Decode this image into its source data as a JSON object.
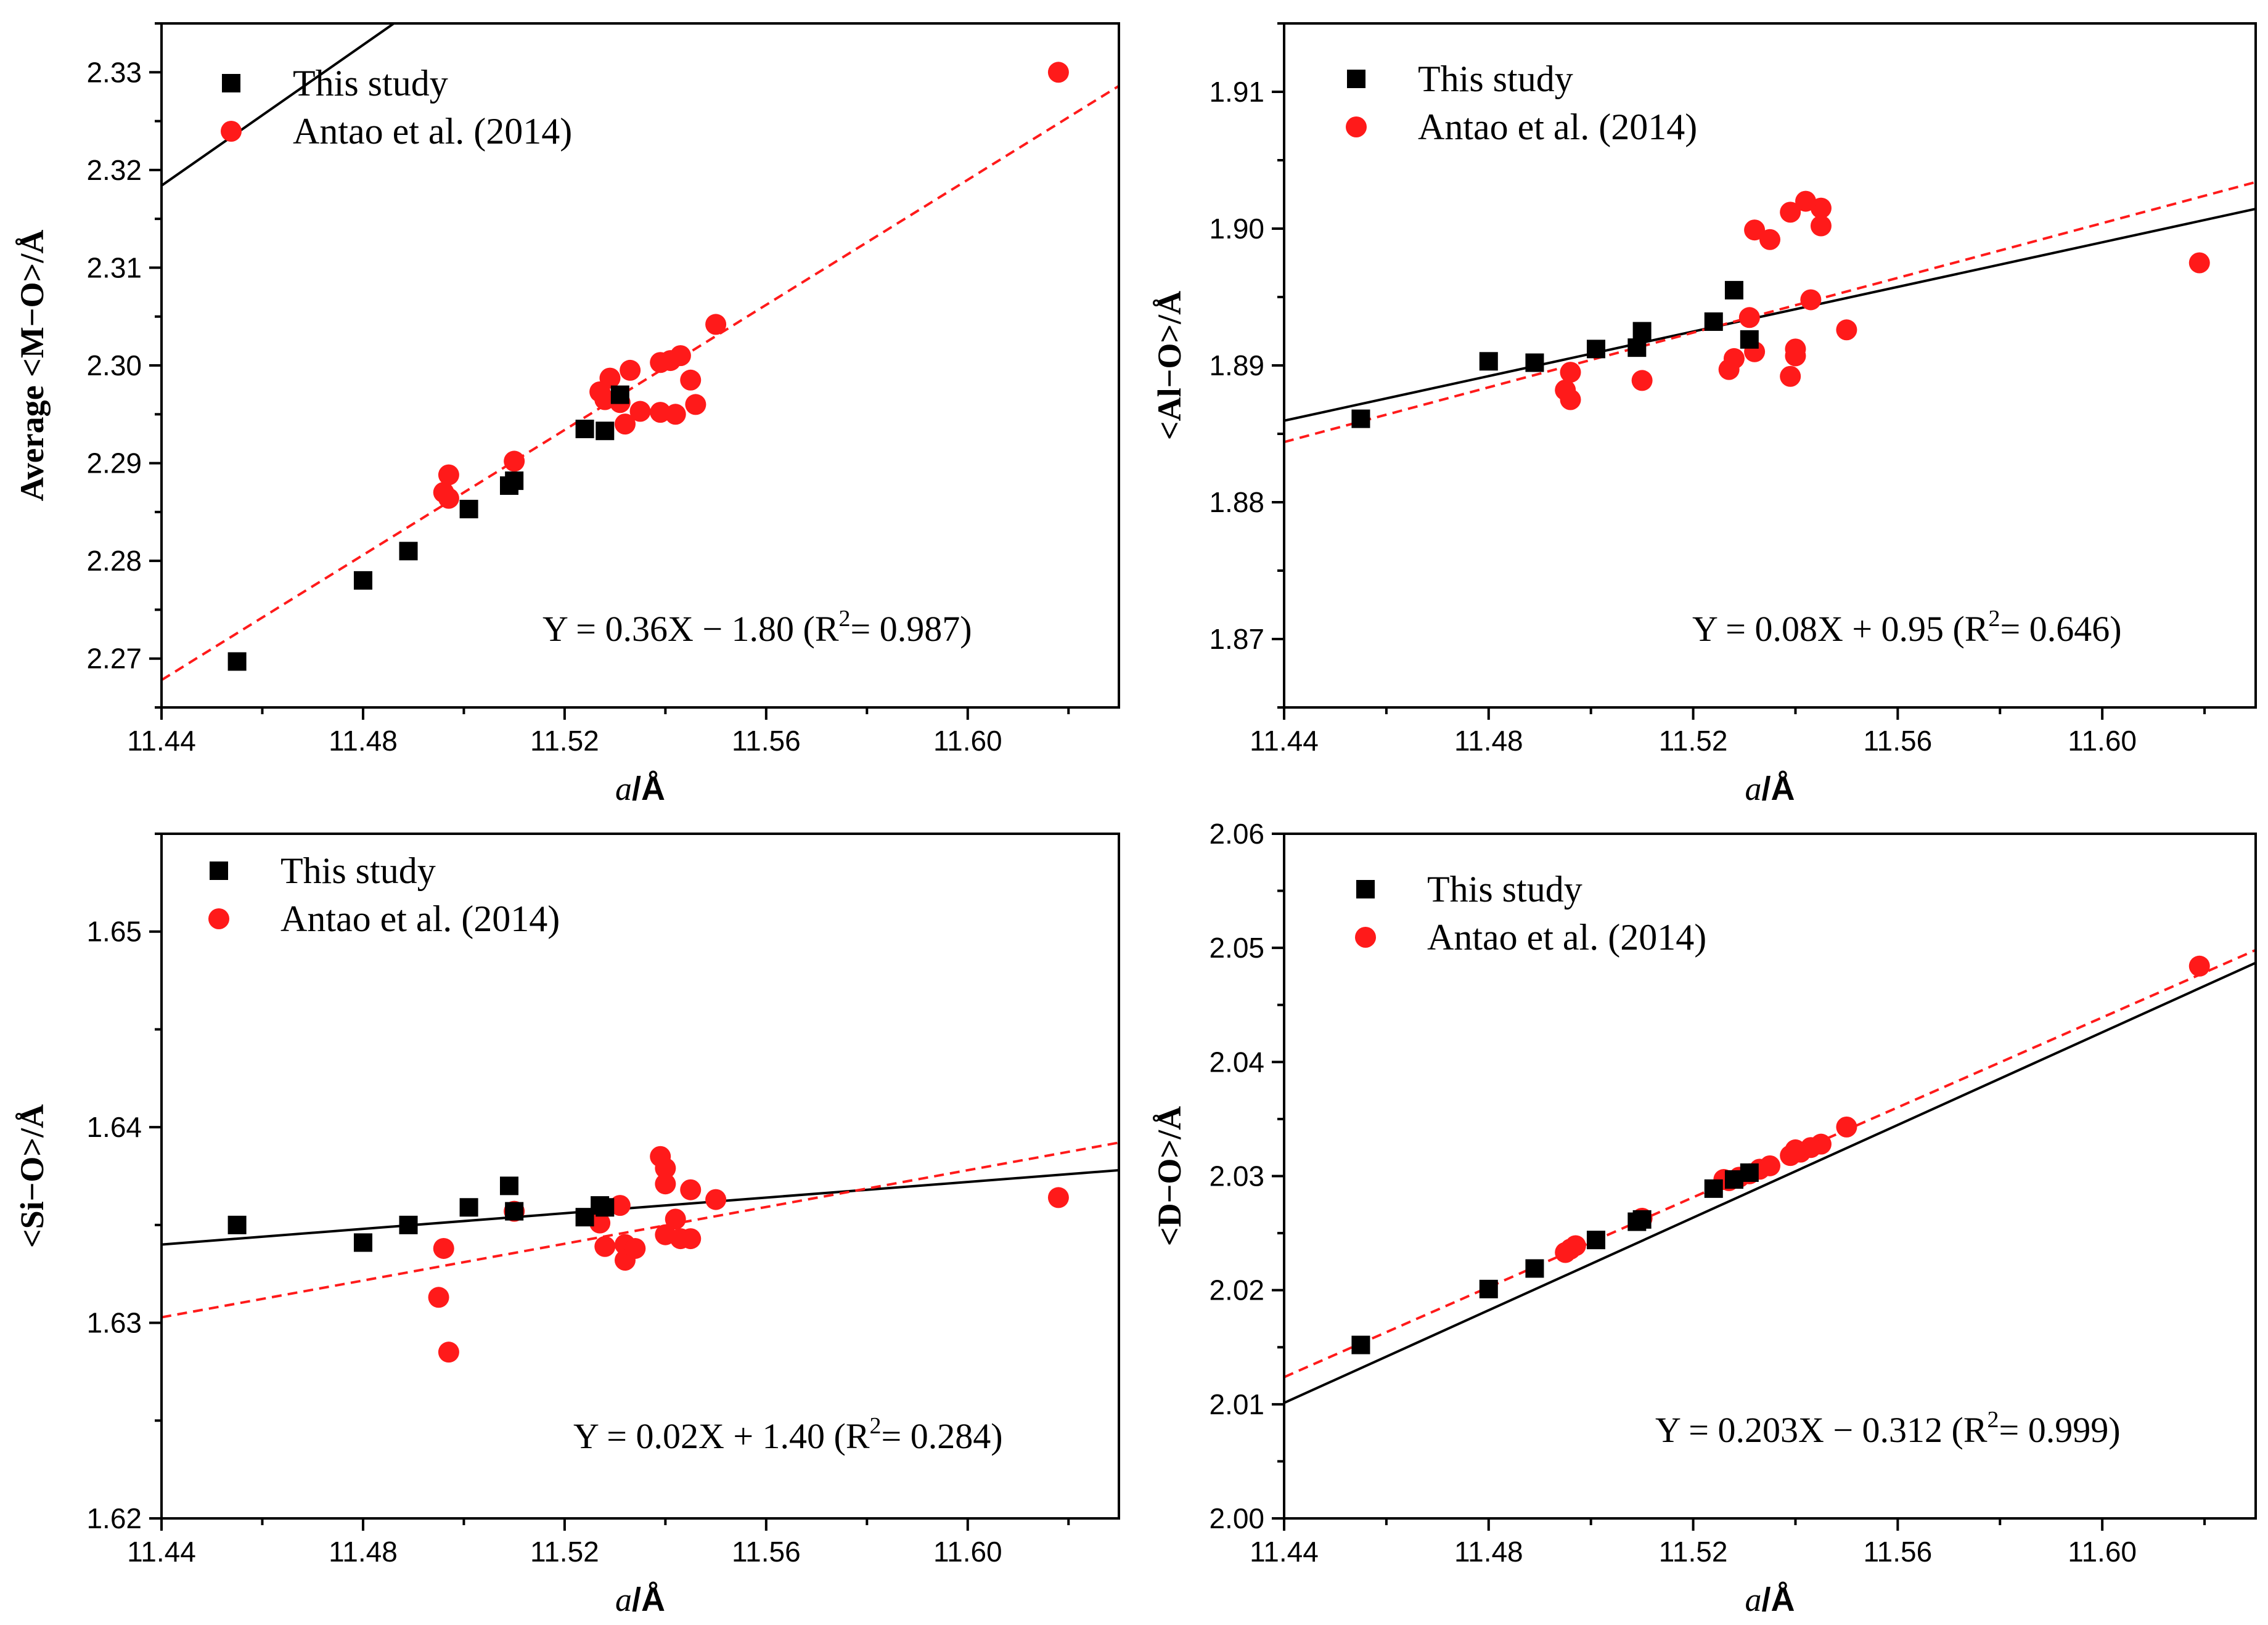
{
  "colors": {
    "this_study": "#000000",
    "antao": "#ff1a1a",
    "axis": "#000000"
  },
  "chart_data": [
    {
      "type": "scatter",
      "panel": "top-left",
      "ylabel": "Average <M−O>/Å",
      "xlabel_italic": "a",
      "xlabel_rest": "/Å",
      "xlim": [
        11.44,
        11.63
      ],
      "ylim": [
        2.265,
        2.335
      ],
      "xticks": [
        "11.44",
        "11.48",
        "11.52",
        "11.56",
        "11.60"
      ],
      "yticks": [
        "2.27",
        "2.28",
        "2.29",
        "2.30",
        "2.31",
        "2.32",
        "2.33"
      ],
      "legend": {
        "this_study": "This study",
        "antao": "Antao et al. (2014)"
      },
      "equation": {
        "main": "Y = 0.36X − 1.80 (R",
        "sup": "2",
        "tail": "= 0.987)"
      },
      "series": [
        {
          "name": "This study",
          "marker": "square",
          "color": "#000000",
          "points": [
            [
              11.455,
              2.2697
            ],
            [
              11.48,
              2.278
            ],
            [
              11.489,
              2.281
            ],
            [
              11.501,
              2.2853
            ],
            [
              11.509,
              2.2877
            ],
            [
              11.51,
              2.2882
            ],
            [
              11.524,
              2.2935
            ],
            [
              11.528,
              2.2933
            ],
            [
              11.531,
              2.297
            ]
          ]
        },
        {
          "name": "Antao et al. (2014)",
          "marker": "circle",
          "color": "#ff1a1a",
          "points": [
            [
              11.618,
              2.33
            ],
            [
              11.55,
              2.3042
            ],
            [
              11.545,
              2.2985
            ],
            [
              11.546,
              2.296
            ],
            [
              11.543,
              2.301
            ],
            [
              11.541,
              2.3005
            ],
            [
              11.539,
              2.3003
            ],
            [
              11.539,
              2.2952
            ],
            [
              11.542,
              2.295
            ],
            [
              11.533,
              2.2995
            ],
            [
              11.529,
              2.2987
            ],
            [
              11.527,
              2.2973
            ],
            [
              11.528,
              2.2965
            ],
            [
              11.531,
              2.2962
            ],
            [
              11.532,
              2.294
            ],
            [
              11.535,
              2.2953
            ],
            [
              11.51,
              2.2902
            ],
            [
              11.497,
              2.2888
            ],
            [
              11.496,
              2.287
            ],
            [
              11.497,
              2.2864
            ]
          ]
        }
      ],
      "fits": [
        {
          "name": "This study fit",
          "style": "solid",
          "color": "#000000",
          "slope": 0.36,
          "intercept": -1.8
        },
        {
          "name": "Antao fit",
          "style": "dashed",
          "color": "#ff1a1a",
          "slope": 0.32,
          "intercept": -1.393
        }
      ]
    },
    {
      "type": "scatter",
      "panel": "top-right",
      "ylabel": "<Al−O>/Å",
      "xlabel_italic": "a",
      "xlabel_rest": "/Å",
      "xlim": [
        11.44,
        11.63
      ],
      "ylim": [
        1.865,
        1.915
      ],
      "xticks": [
        "11.44",
        "11.48",
        "11.52",
        "11.56",
        "11.60"
      ],
      "yticks": [
        "1.87",
        "1.88",
        "1.89",
        "1.90",
        "1.91"
      ],
      "legend": {
        "this_study": "This study",
        "antao": "Antao et al. (2014)"
      },
      "equation": {
        "main": "Y = 0.08X + 0.95 (R",
        "sup": "2",
        "tail": "= 0.646)"
      },
      "series": [
        {
          "name": "This study",
          "marker": "square",
          "color": "#000000",
          "points": [
            [
              11.455,
              1.8861
            ],
            [
              11.48,
              1.8903
            ],
            [
              11.489,
              1.8902
            ],
            [
              11.501,
              1.8912
            ],
            [
              11.509,
              1.8913
            ],
            [
              11.51,
              1.8925
            ],
            [
              11.524,
              1.8932
            ],
            [
              11.528,
              1.8955
            ],
            [
              11.531,
              1.8919
            ]
          ]
        },
        {
          "name": "Antao et al. (2014)",
          "marker": "circle",
          "color": "#ff1a1a",
          "points": [
            [
              11.619,
              1.8975
            ],
            [
              11.55,
              1.8926
            ],
            [
              11.543,
              1.8948
            ],
            [
              11.545,
              1.9002
            ],
            [
              11.545,
              1.9015
            ],
            [
              11.542,
              1.902
            ],
            [
              11.539,
              1.9012
            ],
            [
              11.532,
              1.8999
            ],
            [
              11.535,
              1.8992
            ],
            [
              11.531,
              1.8935
            ],
            [
              11.532,
              1.891
            ],
            [
              11.54,
              1.8912
            ],
            [
              11.54,
              1.8907
            ],
            [
              11.539,
              1.8892
            ],
            [
              11.528,
              1.8905
            ],
            [
              11.527,
              1.8897
            ],
            [
              11.51,
              1.8889
            ],
            [
              11.496,
              1.8895
            ],
            [
              11.495,
              1.8882
            ],
            [
              11.496,
              1.8875
            ]
          ]
        }
      ],
      "fits": [
        {
          "name": "This study fit",
          "style": "solid",
          "color": "#000000",
          "slope": 0.0815,
          "intercept": 0.9536
        },
        {
          "name": "Antao fit",
          "style": "dashed",
          "color": "#ff1a1a",
          "slope": 0.1,
          "intercept": 0.7404
        }
      ]
    },
    {
      "type": "scatter",
      "panel": "bottom-left",
      "ylabel": "<Si−O>/Å",
      "xlabel_italic": "a",
      "xlabel_rest": "/Å",
      "xlim": [
        11.44,
        11.63
      ],
      "ylim": [
        1.62,
        1.655
      ],
      "xticks": [
        "11.44",
        "11.48",
        "11.52",
        "11.56",
        "11.60"
      ],
      "yticks": [
        "1.62",
        "1.63",
        "1.64",
        "1.65"
      ],
      "legend": {
        "this_study": "This study",
        "antao": "Antao et al. (2014)"
      },
      "equation": {
        "main": "Y = 0.02X + 1.40 (R",
        "sup": "2",
        "tail": "= 0.284)"
      },
      "series": [
        {
          "name": "This study",
          "marker": "square",
          "color": "#000000",
          "points": [
            [
              11.455,
              1.635
            ],
            [
              11.48,
              1.6341
            ],
            [
              11.489,
              1.635
            ],
            [
              11.501,
              1.6359
            ],
            [
              11.509,
              1.637
            ],
            [
              11.51,
              1.6357
            ],
            [
              11.524,
              1.6354
            ],
            [
              11.527,
              1.636
            ],
            [
              11.528,
              1.6359
            ]
          ]
        },
        {
          "name": "Antao et al. (2014)",
          "marker": "circle",
          "color": "#ff1a1a",
          "points": [
            [
              11.618,
              1.6364
            ],
            [
              11.55,
              1.6363
            ],
            [
              11.545,
              1.6368
            ],
            [
              11.545,
              1.6343
            ],
            [
              11.543,
              1.6343
            ],
            [
              11.54,
              1.6345
            ],
            [
              11.542,
              1.6353
            ],
            [
              11.539,
              1.6385
            ],
            [
              11.54,
              1.6379
            ],
            [
              11.54,
              1.6371
            ],
            [
              11.531,
              1.636
            ],
            [
              11.532,
              1.634
            ],
            [
              11.532,
              1.6332
            ],
            [
              11.534,
              1.6338
            ],
            [
              11.528,
              1.6339
            ],
            [
              11.527,
              1.6351
            ],
            [
              11.51,
              1.6357
            ],
            [
              11.496,
              1.6338
            ],
            [
              11.495,
              1.6313
            ],
            [
              11.497,
              1.6285
            ]
          ]
        }
      ],
      "fits": [
        {
          "name": "This study fit",
          "style": "solid",
          "color": "#000000",
          "slope": 0.02,
          "intercept": 1.4052
        },
        {
          "name": "Antao fit",
          "style": "dashed",
          "color": "#ff1a1a",
          "slope": 0.047,
          "intercept": 1.0926
        }
      ]
    },
    {
      "type": "scatter",
      "panel": "bottom-right",
      "ylabel": "<D−O>/Å",
      "xlabel_italic": "a",
      "xlabel_rest": "/Å",
      "xlim": [
        11.44,
        11.63
      ],
      "ylim": [
        2.0,
        2.06
      ],
      "xticks": [
        "11.44",
        "11.48",
        "11.52",
        "11.56",
        "11.60"
      ],
      "yticks": [
        "2.00",
        "2.01",
        "2.02",
        "2.03",
        "2.04",
        "2.05",
        "2.06"
      ],
      "legend": {
        "this_study": "This study",
        "antao": "Antao et al. (2014)"
      },
      "equation": {
        "main": "Y = 0.203X − 0.312 (R",
        "sup": "2",
        "tail": "= 0.999)"
      },
      "series": [
        {
          "name": "This study",
          "marker": "square",
          "color": "#000000",
          "points": [
            [
              11.455,
              2.0152
            ],
            [
              11.48,
              2.0201
            ],
            [
              11.489,
              2.0219
            ],
            [
              11.501,
              2.0244
            ],
            [
              11.509,
              2.026
            ],
            [
              11.51,
              2.0262
            ],
            [
              11.524,
              2.0289
            ],
            [
              11.528,
              2.0297
            ],
            [
              11.531,
              2.0303
            ]
          ]
        },
        {
          "name": "Antao et al. (2014)",
          "marker": "circle",
          "color": "#ff1a1a",
          "points": [
            [
              11.619,
              2.0484
            ],
            [
              11.55,
              2.0343
            ],
            [
              11.545,
              2.0328
            ],
            [
              11.543,
              2.0325
            ],
            [
              11.541,
              2.0321
            ],
            [
              11.539,
              2.0318
            ],
            [
              11.54,
              2.0323
            ],
            [
              11.535,
              2.0309
            ],
            [
              11.533,
              2.0306
            ],
            [
              11.531,
              2.0302
            ],
            [
              11.529,
              2.0299
            ],
            [
              11.527,
              2.0296
            ],
            [
              11.526,
              2.0297
            ],
            [
              11.51,
              2.0263
            ],
            [
              11.497,
              2.0239
            ],
            [
              11.496,
              2.0236
            ],
            [
              11.495,
              2.0233
            ]
          ]
        }
      ],
      "fits": [
        {
          "name": "This study fit",
          "style": "solid",
          "color": "#000000",
          "slope": 0.203,
          "intercept": -0.3122
        },
        {
          "name": "Antao fit",
          "style": "dashed",
          "color": "#ff1a1a",
          "slope": 0.197,
          "intercept": -0.2413
        }
      ]
    }
  ]
}
